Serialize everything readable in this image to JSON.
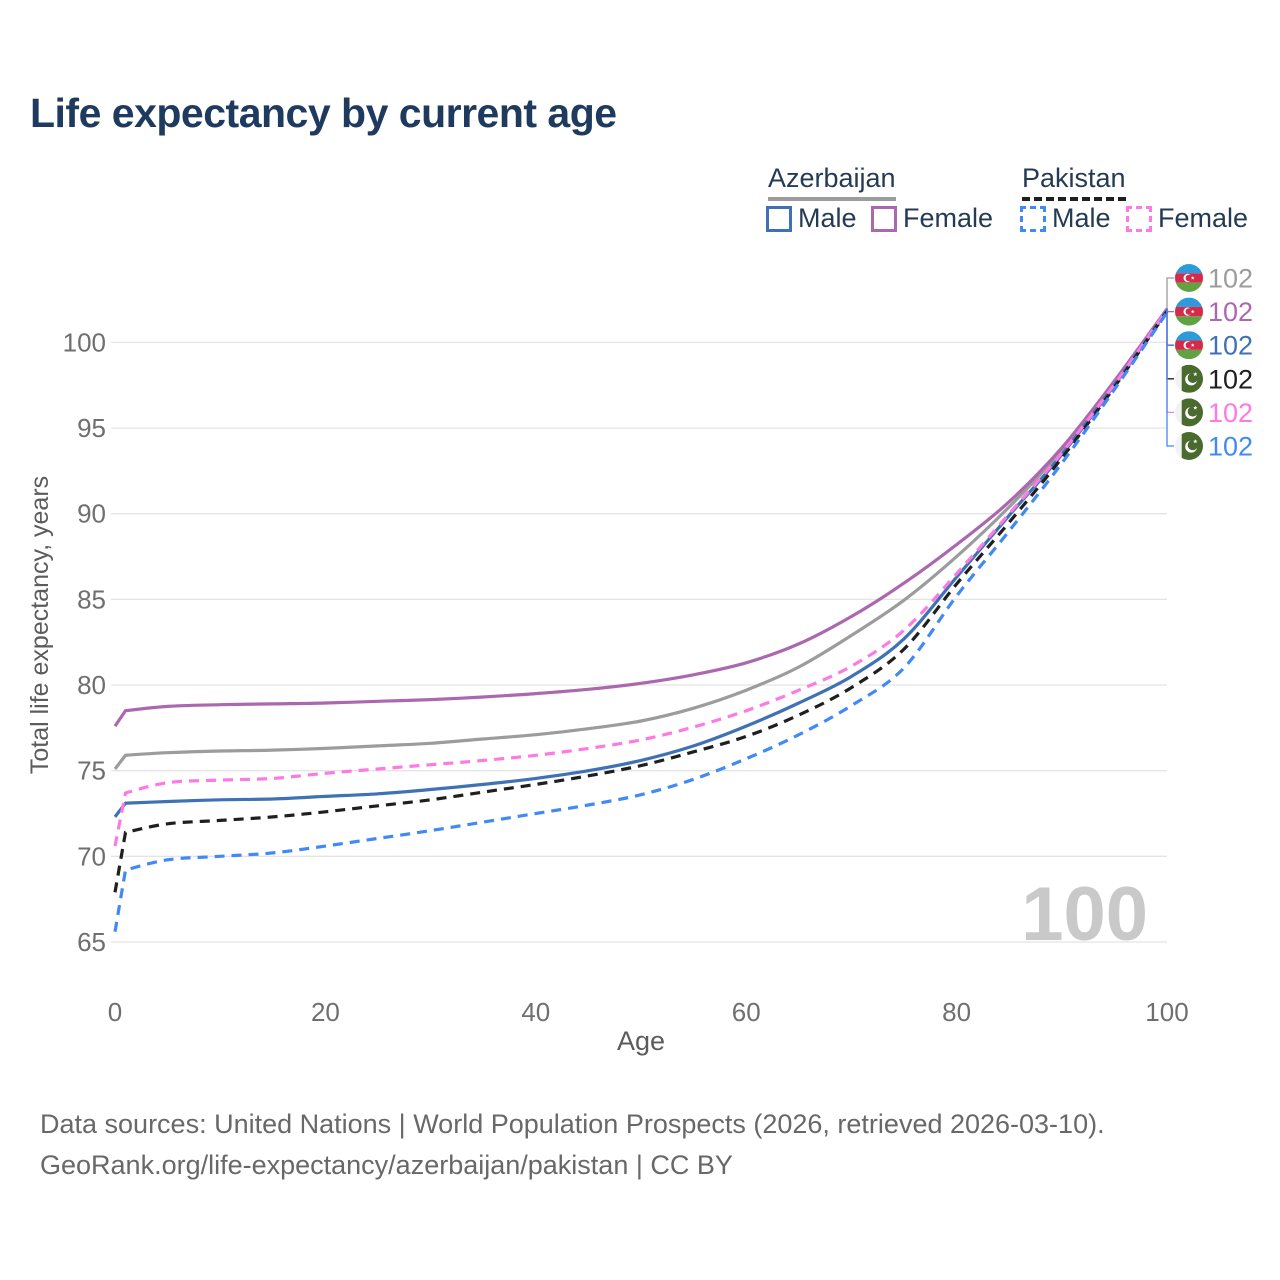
{
  "title": "Life expectancy by current age",
  "watermark": "100",
  "legend": {
    "groups": [
      {
        "country": "Azerbaijan",
        "line_style": "solid",
        "underline_color": "#9c9c9c",
        "items": [
          {
            "label": "Male",
            "color": "#3f72b5"
          },
          {
            "label": "Female",
            "color": "#ab68af"
          }
        ]
      },
      {
        "country": "Pakistan",
        "line_style": "dashed",
        "underline_color": "#1f1f1f",
        "items": [
          {
            "label": "Male",
            "color": "#4189f5"
          },
          {
            "label": "Female",
            "color": "#fc7ae2"
          }
        ]
      }
    ]
  },
  "footer": {
    "line1": "Data sources: United Nations | World Population Prospects (2026, retrieved 2026-03-10).",
    "line2": "GeoRank.org/life-expectancy/azerbaijan/pakistan | CC BY"
  },
  "chart_data": {
    "type": "line",
    "title": "Life expectancy by current age",
    "xlabel": "Age",
    "ylabel": "Total life expectancy, years",
    "xlim": [
      0,
      100
    ],
    "ylim": [
      65,
      102
    ],
    "xticks": [
      0,
      20,
      40,
      60,
      80,
      100
    ],
    "yticks": [
      65,
      70,
      75,
      80,
      85,
      90,
      95,
      100
    ],
    "grid": "horizontal",
    "legend_position": "top-right",
    "ages": [
      0,
      1,
      5,
      10,
      15,
      20,
      25,
      30,
      35,
      40,
      45,
      50,
      55,
      60,
      65,
      70,
      75,
      80,
      85,
      90,
      95,
      100
    ],
    "series": [
      {
        "name": "Azerbaijan Total",
        "color": "#9c9c9c",
        "dash": false,
        "values": [
          75.1,
          75.9,
          76.05,
          76.15,
          76.2,
          76.3,
          76.45,
          76.6,
          76.85,
          77.1,
          77.45,
          77.9,
          78.65,
          79.7,
          81.05,
          82.9,
          84.95,
          87.5,
          90.4,
          93.7,
          97.65,
          101.9
        ]
      },
      {
        "name": "Azerbaijan Female",
        "color": "#ab68af",
        "dash": false,
        "values": [
          77.6,
          78.5,
          78.75,
          78.85,
          78.9,
          78.95,
          79.05,
          79.15,
          79.3,
          79.5,
          79.75,
          80.1,
          80.6,
          81.3,
          82.4,
          84.0,
          85.95,
          88.2,
          90.7,
          93.85,
          97.75,
          101.95
        ]
      },
      {
        "name": "Azerbaijan Male",
        "color": "#3f72b5",
        "dash": false,
        "values": [
          72.3,
          73.1,
          73.2,
          73.3,
          73.35,
          73.5,
          73.65,
          73.9,
          74.2,
          74.55,
          75.0,
          75.6,
          76.45,
          77.6,
          78.95,
          80.5,
          82.7,
          86.3,
          89.9,
          93.45,
          97.5,
          101.85
        ]
      },
      {
        "name": "Pakistan Total",
        "color": "#1f1f1f",
        "dash": true,
        "values": [
          67.9,
          71.4,
          71.9,
          72.1,
          72.3,
          72.6,
          72.95,
          73.3,
          73.75,
          74.2,
          74.7,
          75.3,
          76.1,
          77.0,
          78.25,
          79.85,
          82.1,
          85.9,
          89.5,
          93.25,
          97.4,
          101.8
        ]
      },
      {
        "name": "Pakistan Female",
        "color": "#fc7ae2",
        "dash": true,
        "values": [
          70.6,
          73.7,
          74.3,
          74.45,
          74.55,
          74.85,
          75.1,
          75.35,
          75.6,
          75.9,
          76.3,
          76.8,
          77.55,
          78.5,
          79.7,
          81.1,
          83.2,
          86.5,
          90.0,
          93.55,
          97.55,
          101.9
        ]
      },
      {
        "name": "Pakistan Male",
        "color": "#4189f5",
        "dash": true,
        "values": [
          65.6,
          69.2,
          69.8,
          70.0,
          70.2,
          70.6,
          71.05,
          71.5,
          72.0,
          72.5,
          73.0,
          73.6,
          74.5,
          75.7,
          77.1,
          78.8,
          81.0,
          85.2,
          89.0,
          92.95,
          97.25,
          101.75
        ]
      }
    ],
    "end_labels": [
      {
        "flag": "az",
        "country": "Azerbaijan",
        "series": "Total",
        "color": "#9c9c9c",
        "value": "102"
      },
      {
        "flag": "az",
        "country": "Azerbaijan",
        "series": "Female",
        "color": "#ab68af",
        "value": "102"
      },
      {
        "flag": "az",
        "country": "Azerbaijan",
        "series": "Male",
        "color": "#3f72b5",
        "value": "102"
      },
      {
        "flag": "pk",
        "country": "Pakistan",
        "series": "Total",
        "color": "#1f1f1f",
        "value": "102"
      },
      {
        "flag": "pk",
        "country": "Pakistan",
        "series": "Female",
        "color": "#fc7ae2",
        "value": "102"
      },
      {
        "flag": "pk",
        "country": "Pakistan",
        "series": "Male",
        "color": "#4189f5",
        "value": "102"
      }
    ]
  }
}
